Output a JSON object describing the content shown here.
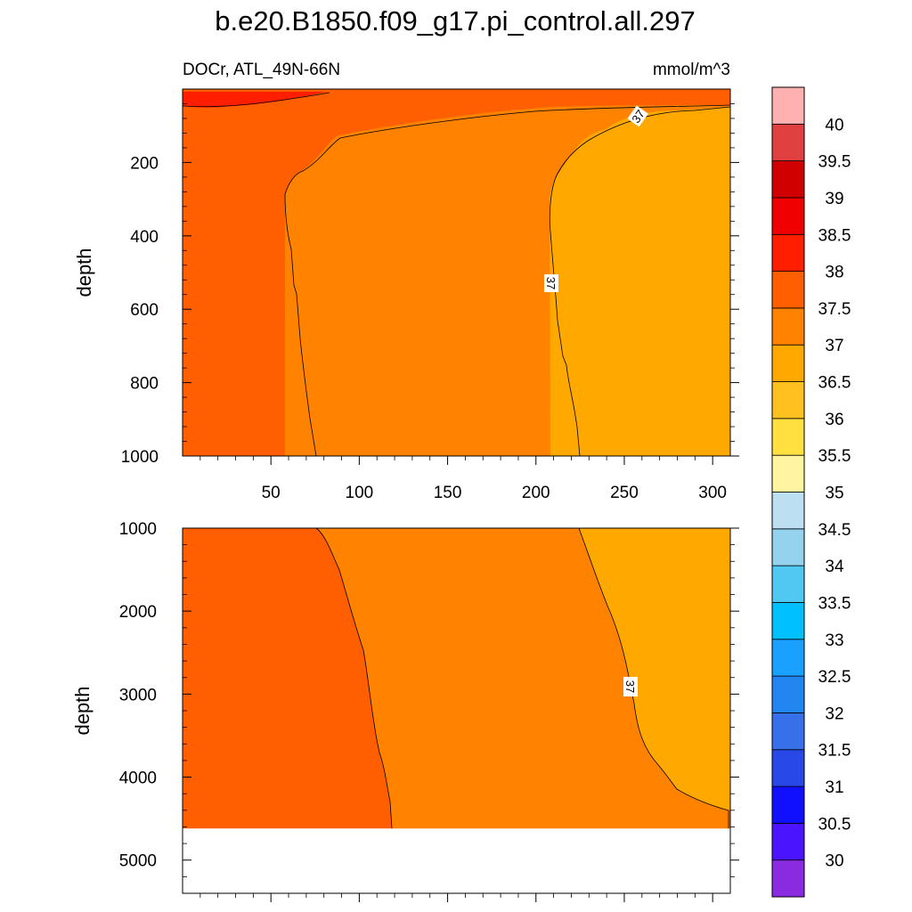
{
  "chart_data": {
    "type": "contour",
    "title": "b.e20.B1850.f09_g17.pi_control.all.297",
    "subtitle_left": "DOCr, ATL_49N-66N",
    "units": "mmol/m^3",
    "ylabel": "depth",
    "xlim": [
      0,
      310
    ],
    "x_ticks": [
      "50",
      "100",
      "150",
      "200",
      "250",
      "300"
    ],
    "panels": [
      {
        "name": "upper",
        "ylim": [
          0,
          1000
        ],
        "y_ticks": [
          "200",
          "400",
          "600",
          "800",
          "1000"
        ],
        "contour_labels": [
          "37",
          "37"
        ],
        "regions": [
          {
            "level": "37.5-38",
            "color": "#ff5f00",
            "desc": "west of ~x=60-75"
          },
          {
            "level": "37-37.5",
            "color": "#ff8200",
            "desc": "x~60 to x~210"
          },
          {
            "level": "36.5-37",
            "color": "#ffa800",
            "desc": "east of ~x=210"
          },
          {
            "level": "38-38.5 / 38.5-39",
            "color": "#ff1e00",
            "desc": "surface layer west"
          }
        ]
      },
      {
        "name": "lower",
        "ylim": [
          1000,
          5400
        ],
        "y_ticks": [
          "1000",
          "2000",
          "3000",
          "4000",
          "5000"
        ],
        "bottom_depth": 4620,
        "contour_labels": [
          "37"
        ],
        "regions": [
          {
            "level": "37.5-38",
            "color": "#ff5f00"
          },
          {
            "level": "37-37.5",
            "color": "#ff8200"
          },
          {
            "level": "36.5-37",
            "color": "#ffa800"
          }
        ]
      }
    ],
    "colorbar": {
      "labels": [
        "30",
        "30.5",
        "31",
        "31.5",
        "32",
        "32.5",
        "33",
        "33.5",
        "34",
        "34.5",
        "35",
        "35.5",
        "36",
        "36.5",
        "37",
        "37.5",
        "38",
        "38.5",
        "39",
        "39.5",
        "40"
      ],
      "colors": [
        "#8a2be2",
        "#4a14ff",
        "#1010ff",
        "#2848e8",
        "#3870ea",
        "#2286f0",
        "#1aa0ff",
        "#00c0ff",
        "#50c8f2",
        "#94d2ee",
        "#bce0f2",
        "#fff5a0",
        "#ffe040",
        "#ffc020",
        "#ffa800",
        "#ff8200",
        "#ff5f00",
        "#ff1e00",
        "#f00000",
        "#d00000",
        "#e04040",
        "#ffb0b0"
      ]
    }
  }
}
